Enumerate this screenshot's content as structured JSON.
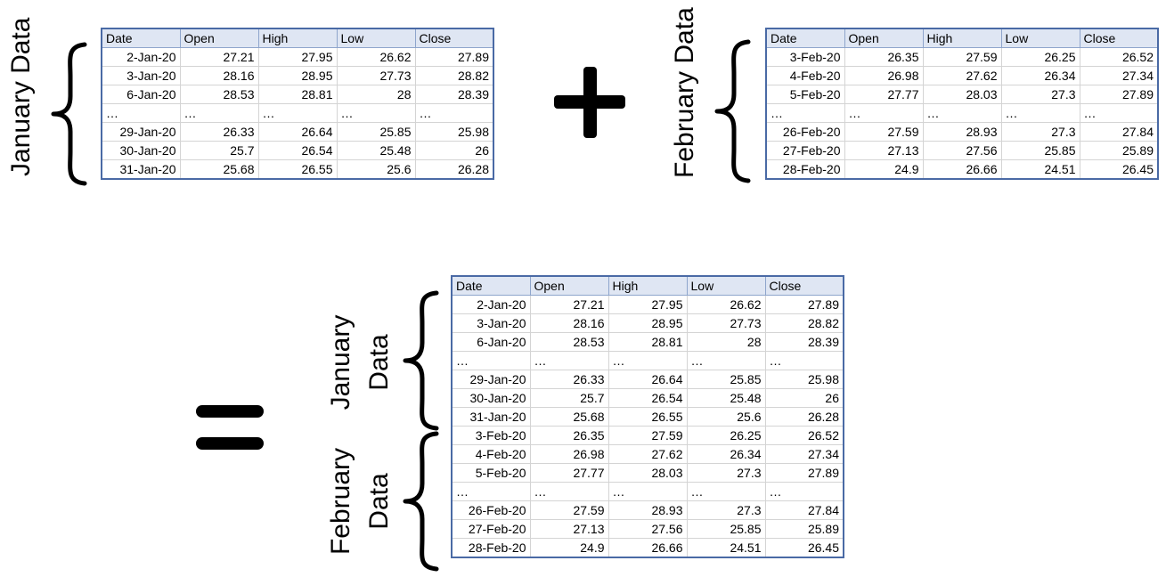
{
  "labels": {
    "january_data": "January Data",
    "february_data": "February Data",
    "combined_january_line1": "January",
    "combined_january_line2": "Data",
    "combined_february_line1": "February",
    "combined_february_line2": "Data"
  },
  "columns": [
    "Date",
    "Open",
    "High",
    "Low",
    "Close"
  ],
  "ellipsis": "…",
  "january_rows": [
    [
      "2-Jan-20",
      "27.21",
      "27.95",
      "26.62",
      "27.89"
    ],
    [
      "3-Jan-20",
      "28.16",
      "28.95",
      "27.73",
      "28.82"
    ],
    [
      "6-Jan-20",
      "28.53",
      "28.81",
      "28",
      "28.39"
    ],
    [
      "…",
      "…",
      "…",
      "…",
      "…"
    ],
    [
      "29-Jan-20",
      "26.33",
      "26.64",
      "25.85",
      "25.98"
    ],
    [
      "30-Jan-20",
      "25.7",
      "26.54",
      "25.48",
      "26"
    ],
    [
      "31-Jan-20",
      "25.68",
      "26.55",
      "25.6",
      "26.28"
    ]
  ],
  "february_rows": [
    [
      "3-Feb-20",
      "26.35",
      "27.59",
      "26.25",
      "26.52"
    ],
    [
      "4-Feb-20",
      "26.98",
      "27.62",
      "26.34",
      "27.34"
    ],
    [
      "5-Feb-20",
      "27.77",
      "28.03",
      "27.3",
      "27.89"
    ],
    [
      "…",
      "…",
      "…",
      "…",
      "…"
    ],
    [
      "26-Feb-20",
      "27.59",
      "28.93",
      "27.3",
      "27.84"
    ],
    [
      "27-Feb-20",
      "27.13",
      "27.56",
      "25.85",
      "25.89"
    ],
    [
      "28-Feb-20",
      "24.9",
      "26.66",
      "24.51",
      "26.45"
    ]
  ],
  "colors": {
    "header_fill": "#dfe6f3",
    "table_border": "#4a6aa5",
    "grid_line": "#d4d4d4"
  },
  "operators": [
    "plus",
    "equals"
  ]
}
